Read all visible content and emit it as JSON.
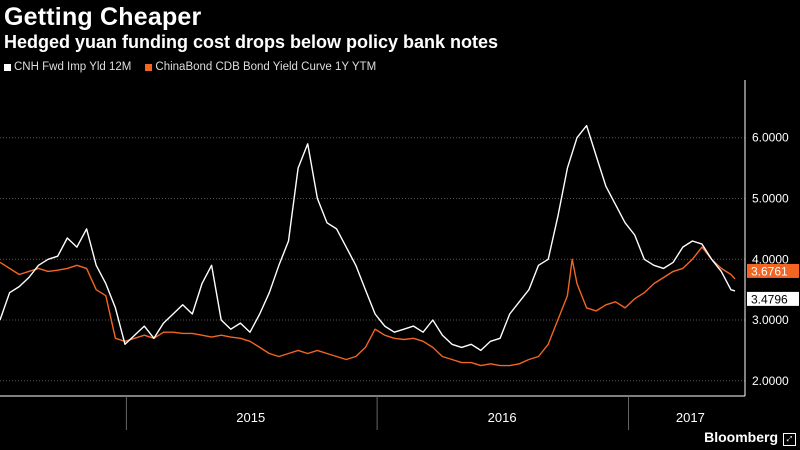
{
  "title": "Getting Cheaper",
  "subtitle": "Hedged yuan funding cost drops below policy bank notes",
  "brand": "Bloomberg",
  "chart_data": {
    "type": "line",
    "title": "Getting Cheaper",
    "subtitle": "Hedged yuan funding cost drops below policy bank notes",
    "x_range": [
      "2014-07-01",
      "2017-06-05"
    ],
    "ylim": [
      1.75,
      6.95
    ],
    "yticks": [
      2.0,
      3.0,
      4.0,
      5.0,
      6.0
    ],
    "ytick_labels": [
      "2.0000",
      "3.0000",
      "4.0000",
      "5.0000",
      "6.0000"
    ],
    "xtick_labels": [
      {
        "label": "2015",
        "date": "2015-07-01"
      },
      {
        "label": "2016",
        "date": "2016-07-01"
      },
      {
        "label": "2017",
        "date": "2017-04-01"
      }
    ],
    "year_boundaries": [
      "2015-01-01",
      "2016-01-01",
      "2017-01-01"
    ],
    "grid": "horizontal dotted",
    "legend_position": "top-left",
    "series": [
      {
        "name": "CNH Fwd Imp Yld 12M",
        "color": "#ffffff",
        "last_value_label": "3.4796",
        "points": [
          [
            "2014-07-01",
            3.0
          ],
          [
            "2014-07-15",
            3.45
          ],
          [
            "2014-07-29",
            3.55
          ],
          [
            "2014-08-12",
            3.7
          ],
          [
            "2014-08-26",
            3.9
          ],
          [
            "2014-09-09",
            4.0
          ],
          [
            "2014-09-23",
            4.05
          ],
          [
            "2014-10-07",
            4.35
          ],
          [
            "2014-10-21",
            4.2
          ],
          [
            "2014-11-04",
            4.5
          ],
          [
            "2014-11-18",
            3.9
          ],
          [
            "2014-12-02",
            3.6
          ],
          [
            "2014-12-16",
            3.2
          ],
          [
            "2014-12-30",
            2.6
          ],
          [
            "2015-01-13",
            2.75
          ],
          [
            "2015-01-27",
            2.9
          ],
          [
            "2015-02-10",
            2.7
          ],
          [
            "2015-02-24",
            2.95
          ],
          [
            "2015-03-10",
            3.1
          ],
          [
            "2015-03-24",
            3.25
          ],
          [
            "2015-04-07",
            3.1
          ],
          [
            "2015-04-21",
            3.6
          ],
          [
            "2015-05-05",
            3.9
          ],
          [
            "2015-05-19",
            3.0
          ],
          [
            "2015-06-02",
            2.85
          ],
          [
            "2015-06-16",
            2.95
          ],
          [
            "2015-06-30",
            2.8
          ],
          [
            "2015-07-14",
            3.1
          ],
          [
            "2015-07-28",
            3.45
          ],
          [
            "2015-08-11",
            3.9
          ],
          [
            "2015-08-25",
            4.3
          ],
          [
            "2015-09-08",
            5.5
          ],
          [
            "2015-09-22",
            5.9
          ],
          [
            "2015-10-06",
            5.0
          ],
          [
            "2015-10-20",
            4.6
          ],
          [
            "2015-11-03",
            4.5
          ],
          [
            "2015-11-17",
            4.2
          ],
          [
            "2015-12-01",
            3.9
          ],
          [
            "2015-12-15",
            3.5
          ],
          [
            "2015-12-29",
            3.1
          ],
          [
            "2016-01-12",
            2.9
          ],
          [
            "2016-01-26",
            2.8
          ],
          [
            "2016-02-09",
            2.85
          ],
          [
            "2016-02-23",
            2.9
          ],
          [
            "2016-03-08",
            2.8
          ],
          [
            "2016-03-22",
            3.0
          ],
          [
            "2016-04-05",
            2.75
          ],
          [
            "2016-04-19",
            2.6
          ],
          [
            "2016-05-03",
            2.55
          ],
          [
            "2016-05-17",
            2.6
          ],
          [
            "2016-05-31",
            2.5
          ],
          [
            "2016-06-14",
            2.65
          ],
          [
            "2016-06-28",
            2.7
          ],
          [
            "2016-07-12",
            3.1
          ],
          [
            "2016-07-26",
            3.3
          ],
          [
            "2016-08-09",
            3.5
          ],
          [
            "2016-08-23",
            3.9
          ],
          [
            "2016-09-06",
            4.0
          ],
          [
            "2016-09-20",
            4.7
          ],
          [
            "2016-10-04",
            5.5
          ],
          [
            "2016-10-18",
            6.0
          ],
          [
            "2016-11-01",
            6.2
          ],
          [
            "2016-11-15",
            5.7
          ],
          [
            "2016-11-29",
            5.2
          ],
          [
            "2016-12-13",
            4.9
          ],
          [
            "2016-12-27",
            4.6
          ],
          [
            "2017-01-10",
            4.4
          ],
          [
            "2017-01-24",
            4.0
          ],
          [
            "2017-02-07",
            3.9
          ],
          [
            "2017-02-21",
            3.85
          ],
          [
            "2017-03-07",
            3.95
          ],
          [
            "2017-03-21",
            4.2
          ],
          [
            "2017-04-04",
            4.3
          ],
          [
            "2017-04-18",
            4.25
          ],
          [
            "2017-05-02",
            4.0
          ],
          [
            "2017-05-16",
            3.8
          ],
          [
            "2017-05-30",
            3.5
          ],
          [
            "2017-06-05",
            3.4796
          ]
        ]
      },
      {
        "name": "ChinaBond CDB Bond Yield Curve 1Y YTM",
        "color": "#f26522",
        "last_value_label": "3.6761",
        "points": [
          [
            "2014-07-01",
            3.95
          ],
          [
            "2014-07-15",
            3.85
          ],
          [
            "2014-07-29",
            3.75
          ],
          [
            "2014-08-12",
            3.8
          ],
          [
            "2014-08-26",
            3.85
          ],
          [
            "2014-09-09",
            3.8
          ],
          [
            "2014-09-23",
            3.82
          ],
          [
            "2014-10-07",
            3.85
          ],
          [
            "2014-10-21",
            3.9
          ],
          [
            "2014-11-04",
            3.85
          ],
          [
            "2014-11-18",
            3.5
          ],
          [
            "2014-12-02",
            3.4
          ],
          [
            "2014-12-16",
            2.7
          ],
          [
            "2014-12-30",
            2.65
          ],
          [
            "2015-01-13",
            2.7
          ],
          [
            "2015-01-27",
            2.75
          ],
          [
            "2015-02-10",
            2.7
          ],
          [
            "2015-02-24",
            2.8
          ],
          [
            "2015-03-10",
            2.8
          ],
          [
            "2015-03-24",
            2.78
          ],
          [
            "2015-04-07",
            2.78
          ],
          [
            "2015-04-21",
            2.75
          ],
          [
            "2015-05-05",
            2.72
          ],
          [
            "2015-05-19",
            2.75
          ],
          [
            "2015-06-02",
            2.72
          ],
          [
            "2015-06-16",
            2.7
          ],
          [
            "2015-06-30",
            2.65
          ],
          [
            "2015-07-14",
            2.55
          ],
          [
            "2015-07-28",
            2.45
          ],
          [
            "2015-08-11",
            2.4
          ],
          [
            "2015-08-25",
            2.45
          ],
          [
            "2015-09-08",
            2.5
          ],
          [
            "2015-09-22",
            2.45
          ],
          [
            "2015-10-06",
            2.5
          ],
          [
            "2015-10-20",
            2.45
          ],
          [
            "2015-11-03",
            2.4
          ],
          [
            "2015-11-17",
            2.35
          ],
          [
            "2015-12-01",
            2.4
          ],
          [
            "2015-12-15",
            2.55
          ],
          [
            "2015-12-29",
            2.85
          ],
          [
            "2016-01-12",
            2.75
          ],
          [
            "2016-01-26",
            2.7
          ],
          [
            "2016-02-09",
            2.68
          ],
          [
            "2016-02-23",
            2.7
          ],
          [
            "2016-03-08",
            2.65
          ],
          [
            "2016-03-22",
            2.55
          ],
          [
            "2016-04-05",
            2.4
          ],
          [
            "2016-04-19",
            2.35
          ],
          [
            "2016-05-03",
            2.3
          ],
          [
            "2016-05-17",
            2.3
          ],
          [
            "2016-05-31",
            2.25
          ],
          [
            "2016-06-14",
            2.28
          ],
          [
            "2016-06-28",
            2.25
          ],
          [
            "2016-07-12",
            2.25
          ],
          [
            "2016-07-26",
            2.28
          ],
          [
            "2016-08-09",
            2.35
          ],
          [
            "2016-08-23",
            2.4
          ],
          [
            "2016-09-06",
            2.6
          ],
          [
            "2016-09-20",
            3.0
          ],
          [
            "2016-10-04",
            3.4
          ],
          [
            "2016-10-11",
            4.0
          ],
          [
            "2016-10-18",
            3.6
          ],
          [
            "2016-11-01",
            3.2
          ],
          [
            "2016-11-15",
            3.15
          ],
          [
            "2016-11-29",
            3.25
          ],
          [
            "2016-12-13",
            3.3
          ],
          [
            "2016-12-27",
            3.2
          ],
          [
            "2017-01-10",
            3.35
          ],
          [
            "2017-01-24",
            3.45
          ],
          [
            "2017-02-07",
            3.6
          ],
          [
            "2017-02-21",
            3.7
          ],
          [
            "2017-03-07",
            3.8
          ],
          [
            "2017-03-21",
            3.85
          ],
          [
            "2017-04-04",
            4.0
          ],
          [
            "2017-04-18",
            4.2
          ],
          [
            "2017-05-02",
            4.0
          ],
          [
            "2017-05-16",
            3.85
          ],
          [
            "2017-05-30",
            3.75
          ],
          [
            "2017-06-05",
            3.6761
          ]
        ]
      }
    ]
  }
}
